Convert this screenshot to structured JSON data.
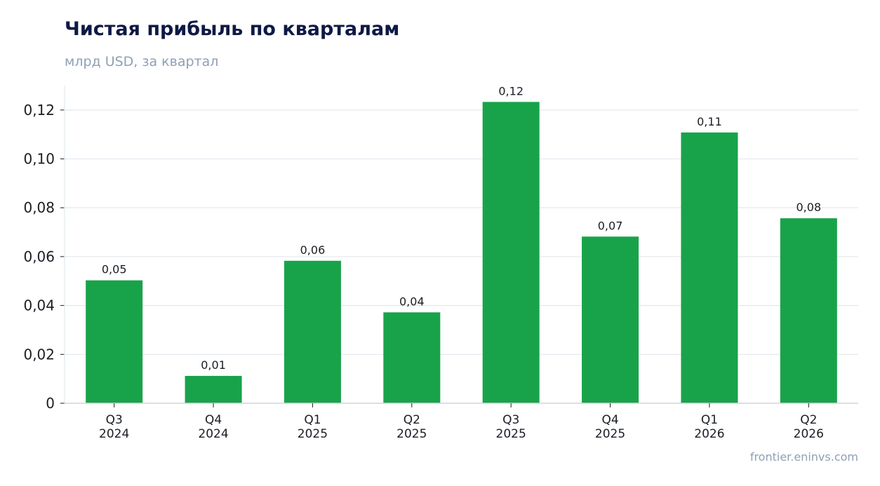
{
  "title": "Чистая прибыль по кварталам",
  "subtitle": "млрд USD, за квартал",
  "source": "frontier.eninvs.com",
  "colors": {
    "bar": "#18a34a",
    "title": "#0e1a45",
    "muted": "#8fa0b5",
    "grid": "#e3e8ee",
    "axis": "#cfd6de",
    "text": "#1a1d24"
  },
  "chart_data": {
    "type": "bar",
    "title": "Чистая прибыль по кварталам",
    "subtitle": "млрд USD, за квартал",
    "categories": [
      [
        "Q3",
        "2024"
      ],
      [
        "Q4",
        "2024"
      ],
      [
        "Q1",
        "2025"
      ],
      [
        "Q2",
        "2025"
      ],
      [
        "Q3",
        "2025"
      ],
      [
        "Q4",
        "2025"
      ],
      [
        "Q1",
        "2026"
      ],
      [
        "Q2",
        "2026"
      ]
    ],
    "values": [
      0.0503,
      0.0112,
      0.0583,
      0.0372,
      0.1233,
      0.0682,
      0.1108,
      0.0757
    ],
    "data_labels": [
      "0,05",
      "0,01",
      "0,06",
      "0,04",
      "0,12",
      "0,07",
      "0,11",
      "0,08"
    ],
    "ylim": [
      0,
      0.13
    ],
    "yticks": [
      0,
      0.02,
      0.04,
      0.06,
      0.08,
      0.1,
      0.12
    ],
    "ytick_labels": [
      "0",
      "0,02",
      "0,04",
      "0,06",
      "0,08",
      "0,10",
      "0,12"
    ],
    "grid": true,
    "legend": "none"
  }
}
